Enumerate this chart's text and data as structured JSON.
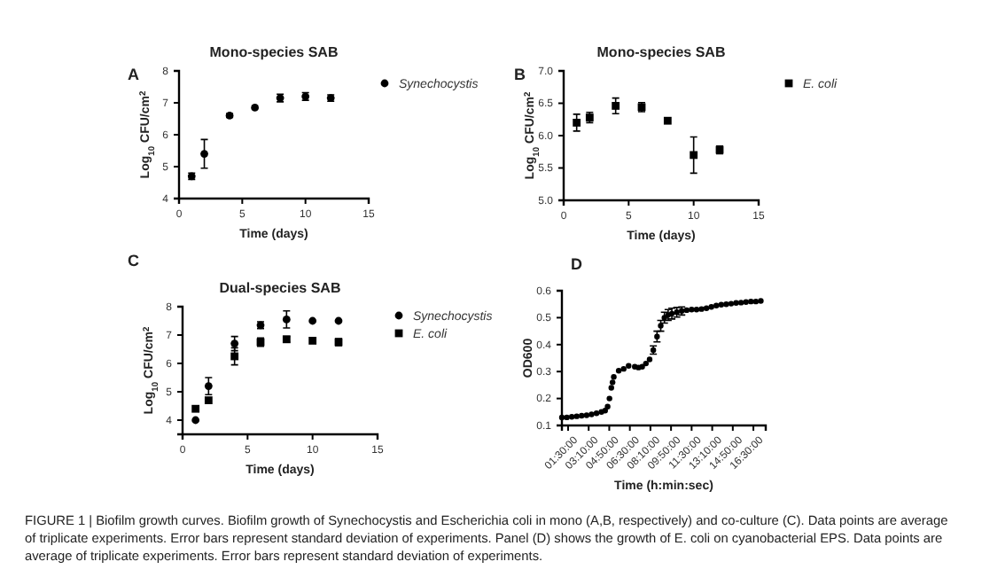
{
  "chart_data": [
    {
      "type": "scatter",
      "title": "Mono-species SAB",
      "xlabel": "Time (days)",
      "ylabel": "Log$_{10}$ CFU/cm$^{2}$",
      "annotations": [
        "A"
      ],
      "x": [
        1,
        2,
        4,
        6,
        8,
        10,
        12
      ],
      "xlim": [
        0,
        15
      ],
      "xticks": [
        0,
        5,
        10,
        15
      ],
      "ylim": [
        4,
        8
      ],
      "yticks": [
        4,
        5,
        6,
        7,
        8
      ],
      "marker": "circle",
      "legend": "top right",
      "series": [
        {
          "name": "Synechocystis",
          "color": "#000000",
          "values": [
            4.7,
            5.4,
            6.6,
            6.85,
            7.15,
            7.2,
            7.15
          ],
          "errors": [
            0.1,
            0.45,
            0.06,
            null,
            0.12,
            0.12,
            0.1
          ]
        }
      ]
    },
    {
      "type": "scatter",
      "title": "Mono-species SAB",
      "xlabel": "Time (days)",
      "ylabel": "Log$_{10}$ CFU/cm$^{2}$",
      "annotations": [
        "B"
      ],
      "x": [
        1,
        2,
        4,
        6,
        8,
        10,
        12
      ],
      "xlim": [
        0,
        15
      ],
      "xticks": [
        0,
        5,
        10,
        15
      ],
      "ylim": [
        5,
        7
      ],
      "yticks": [
        {
          "value": 5,
          "label": "5.0"
        },
        5.5,
        {
          "value": 6,
          "label": "6.0"
        },
        6.5,
        {
          "value": 7,
          "label": "7.0"
        }
      ],
      "marker": "square",
      "legend": "top right",
      "series": [
        {
          "name": "E. coli",
          "color": "#000000",
          "values": [
            6.2,
            6.28,
            6.46,
            6.44,
            6.23,
            5.7,
            5.78
          ],
          "errors": [
            0.13,
            0.08,
            0.12,
            0.07,
            null,
            0.28,
            0.06
          ]
        }
      ]
    },
    {
      "type": "scatter",
      "title": "Dual-species SAB",
      "xlabel": "Time (days)",
      "ylabel": "Log$_{10}$ CFU/cm$^{2}$",
      "annotations": [
        "C"
      ],
      "x": [
        1,
        2,
        4,
        6,
        8,
        10,
        12
      ],
      "xlim": [
        0,
        15
      ],
      "xticks": [
        0,
        5,
        10,
        15
      ],
      "ylim": [
        3.5,
        8
      ],
      "yticks": [
        4,
        5,
        6,
        7,
        8
      ],
      "legend": "top right",
      "series": [
        {
          "name": "Synechocystis",
          "color": "#000000",
          "marker": "circle",
          "values": [
            4.0,
            5.2,
            6.7,
            7.35,
            7.55,
            7.5,
            7.5
          ],
          "errors": [
            null,
            0.3,
            0.25,
            0.12,
            0.3,
            null,
            null
          ]
        },
        {
          "name": "E. coli",
          "color": "#000000",
          "marker": "square",
          "values": [
            4.4,
            4.7,
            6.25,
            6.75,
            6.85,
            6.8,
            6.75
          ],
          "errors": [
            null,
            null,
            0.3,
            0.15,
            0.1,
            null,
            0.12
          ]
        }
      ]
    },
    {
      "type": "scatter",
      "xlabel": "Time (h:min:sec)",
      "ylabel": "OD600",
      "annotations": [
        "D",
        "FIGURE 1 | Biofilm growth curves. Biofilm growth of Synechocystis and Escherichia coli in mono (A,B, respectively) and co-culture (C). Data points are average of triplicate experiments. Error bars represent standard deviation of experiments. Panel (D) shows the growth of E. coli on cyanobacterial EPS. Data points are average of triplicate experiments. Error bars represent standard deviation of experiments."
      ],
      "xlim": [
        1,
        17.5
      ],
      "xticks": [
        {
          "value": 1.5,
          "label": "01:30:00"
        },
        {
          "value": 3.1667,
          "label": "03:10:00"
        },
        {
          "value": 4.8333,
          "label": "04:50:00"
        },
        {
          "value": 6.5,
          "label": "06:30:00"
        },
        {
          "value": 8.1667,
          "label": "08:10:00"
        },
        {
          "value": 9.8333,
          "label": "09:50:00"
        },
        {
          "value": 11.5,
          "label": "11:30:00"
        },
        {
          "value": 13.1667,
          "label": "13:10:00"
        },
        {
          "value": 14.8333,
          "label": "14:50:00"
        },
        {
          "value": 16.5,
          "label": "16:30:00"
        }
      ],
      "ylim": [
        0.1,
        0.6
      ],
      "yticks": [
        0.1,
        0.2,
        0.3,
        0.4,
        0.5,
        0.6
      ],
      "marker": "circle",
      "series": [
        {
          "color": "#000000",
          "x": [
            1.0,
            1.4,
            1.8,
            2.2,
            2.6,
            3.0,
            3.4,
            3.8,
            4.2,
            4.5,
            4.7,
            4.85,
            5.0,
            5.1,
            5.2,
            5.6,
            6.0,
            6.4,
            6.9,
            7.2,
            7.5,
            7.8,
            8.1,
            8.4,
            8.7,
            9.0,
            9.3,
            9.6,
            9.9,
            10.3,
            10.7,
            11.1,
            11.5,
            11.9,
            12.3,
            12.7,
            13.1,
            13.5,
            13.9,
            14.3,
            14.7,
            15.1,
            15.5,
            15.9,
            16.3,
            16.7,
            17.1
          ],
          "values": [
            0.13,
            0.13,
            0.132,
            0.134,
            0.136,
            0.138,
            0.141,
            0.145,
            0.15,
            0.155,
            0.17,
            0.2,
            0.24,
            0.26,
            0.28,
            0.303,
            0.31,
            0.321,
            0.318,
            0.315,
            0.318,
            0.33,
            0.345,
            0.38,
            0.43,
            0.47,
            0.5,
            0.51,
            0.515,
            0.52,
            0.525,
            0.528,
            0.53,
            0.53,
            0.532,
            0.535,
            0.54,
            0.545,
            0.548,
            0.55,
            0.552,
            0.555,
            0.556,
            0.558,
            0.56,
            0.56,
            0.562
          ],
          "errors": [
            null,
            null,
            null,
            null,
            null,
            null,
            null,
            null,
            null,
            null,
            null,
            null,
            null,
            null,
            null,
            null,
            null,
            null,
            null,
            null,
            null,
            null,
            null,
            0.015,
            0.02,
            0.02,
            0.02,
            0.02,
            0.02,
            0.018,
            0.015,
            null,
            null,
            null,
            null,
            null,
            null,
            null,
            null,
            null,
            null,
            null,
            null,
            null,
            null,
            null,
            null
          ]
        }
      ]
    }
  ]
}
